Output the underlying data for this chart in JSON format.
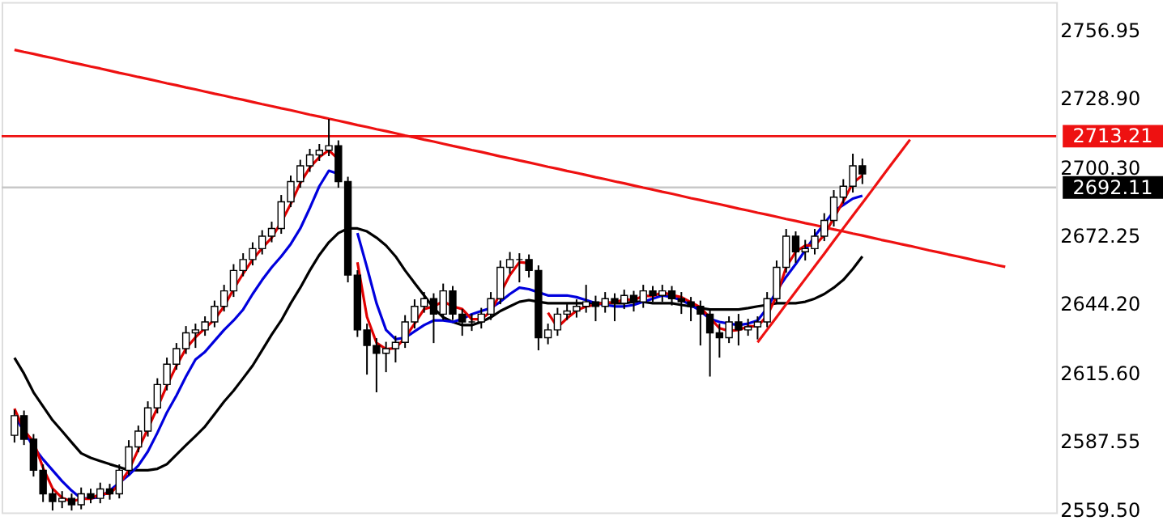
{
  "chart_data": {
    "type": "candlestick",
    "categories": [
      null,
      null,
      null,
      null,
      null,
      null,
      null,
      null,
      null,
      null,
      null,
      null,
      null,
      null,
      null,
      null,
      null,
      null,
      null,
      null,
      null,
      null,
      null,
      null,
      null,
      null,
      null,
      null,
      null,
      null,
      null,
      null,
      null,
      null,
      null,
      null,
      null,
      null,
      null,
      null,
      null,
      null,
      null,
      null,
      null,
      null,
      null,
      null,
      null,
      null,
      null,
      null,
      null,
      null,
      null,
      null,
      null,
      null,
      null,
      null,
      null,
      null,
      null,
      null,
      null,
      null,
      null,
      null,
      null,
      null,
      null,
      null,
      null,
      null,
      null,
      null,
      null,
      null,
      null,
      null,
      null,
      null,
      null,
      null,
      null,
      null,
      null,
      null,
      null,
      null,
      null,
      null,
      null,
      null,
      null,
      null,
      null,
      null,
      null,
      null,
      null,
      null,
      null,
      null,
      null,
      null,
      null,
      null,
      null
    ],
    "ohlc": [
      [
        2590.0,
        2600.5,
        2587.0,
        2598.1
      ],
      [
        2598.1,
        2600.2,
        2586.0,
        2588.4
      ],
      [
        2588.4,
        2590.5,
        2573.0,
        2575.6
      ],
      [
        2575.6,
        2578.0,
        2562.5,
        2565.9
      ],
      [
        2565.9,
        2568.0,
        2559.0,
        2562.7
      ],
      [
        2562.7,
        2567.0,
        2560.0,
        2564.0
      ],
      [
        2564.0,
        2566.0,
        2559.0,
        2561.4
      ],
      [
        2561.4,
        2568.5,
        2559.5,
        2565.9
      ],
      [
        2565.9,
        2568.0,
        2562.0,
        2564.0
      ],
      [
        2564.0,
        2570.5,
        2562.0,
        2567.9
      ],
      [
        2567.9,
        2570.0,
        2563.5,
        2565.9
      ],
      [
        2565.9,
        2578.0,
        2564.0,
        2575.6
      ],
      [
        2575.6,
        2588.0,
        2573.5,
        2585.2
      ],
      [
        2585.2,
        2594.0,
        2583.0,
        2591.7
      ],
      [
        2591.7,
        2604.0,
        2589.5,
        2601.3
      ],
      [
        2601.3,
        2613.5,
        2599.0,
        2610.9
      ],
      [
        2610.9,
        2622.0,
        2608.5,
        2619.3
      ],
      [
        2619.3,
        2628.0,
        2617.0,
        2625.7
      ],
      [
        2625.7,
        2635.0,
        2623.5,
        2632.2
      ],
      [
        2632.2,
        2636.0,
        2626.0,
        2633.4
      ],
      [
        2633.4,
        2639.0,
        2631.0,
        2636.7
      ],
      [
        2636.7,
        2645.5,
        2634.5,
        2643.1
      ],
      [
        2643.1,
        2652.0,
        2641.0,
        2649.5
      ],
      [
        2649.5,
        2660.5,
        2647.0,
        2657.9
      ],
      [
        2657.9,
        2665.0,
        2655.5,
        2662.4
      ],
      [
        2662.4,
        2669.5,
        2660.0,
        2666.9
      ],
      [
        2666.9,
        2674.5,
        2664.5,
        2672.0
      ],
      [
        2672.0,
        2678.0,
        2669.5,
        2675.2
      ],
      [
        2675.2,
        2689.0,
        2673.0,
        2686.2
      ],
      [
        2686.2,
        2697.0,
        2684.0,
        2694.5
      ],
      [
        2694.5,
        2703.5,
        2692.0,
        2701.0
      ],
      [
        2701.0,
        2708.0,
        2698.5,
        2705.5
      ],
      [
        2705.5,
        2710.0,
        2703.0,
        2707.4
      ],
      [
        2707.4,
        2720.3,
        2705.0,
        2709.3
      ],
      [
        2709.3,
        2711.5,
        2692.0,
        2694.5
      ],
      [
        2694.5,
        2696.5,
        2653.0,
        2656.0
      ],
      [
        2656.0,
        2658.0,
        2630.5,
        2633.4
      ],
      [
        2633.4,
        2636.0,
        2615.0,
        2627.0
      ],
      [
        2627.0,
        2630.0,
        2607.7,
        2623.8
      ],
      [
        2623.8,
        2628.5,
        2616.0,
        2625.7
      ],
      [
        2625.7,
        2631.0,
        2620.0,
        2628.3
      ],
      [
        2628.3,
        2639.5,
        2626.0,
        2636.7
      ],
      [
        2636.7,
        2646.0,
        2634.0,
        2643.1
      ],
      [
        2643.1,
        2649.0,
        2640.5,
        2646.3
      ],
      [
        2646.3,
        2648.5,
        2628.0,
        2639.9
      ],
      [
        2639.9,
        2652.5,
        2637.5,
        2649.5
      ],
      [
        2649.5,
        2651.5,
        2637.5,
        2639.9
      ],
      [
        2639.9,
        2642.0,
        2631.0,
        2636.7
      ],
      [
        2636.7,
        2640.0,
        2633.0,
        2636.7
      ],
      [
        2636.7,
        2642.5,
        2634.0,
        2639.9
      ],
      [
        2639.9,
        2649.0,
        2637.5,
        2646.3
      ],
      [
        2646.3,
        2662.0,
        2644.0,
        2659.2
      ],
      [
        2659.2,
        2665.5,
        2656.5,
        2662.4
      ],
      [
        2662.4,
        2665.0,
        2653.0,
        2662.4
      ],
      [
        2662.4,
        2664.5,
        2655.0,
        2657.9
      ],
      [
        2657.9,
        2660.0,
        2625.0,
        2630.2
      ],
      [
        2630.2,
        2636.0,
        2627.5,
        2633.4
      ],
      [
        2633.4,
        2642.5,
        2631.0,
        2639.9
      ],
      [
        2639.9,
        2644.0,
        2637.5,
        2641.2
      ],
      [
        2641.2,
        2646.0,
        2638.5,
        2643.1
      ],
      [
        2643.1,
        2652.0,
        2640.5,
        2645.0
      ],
      [
        2645.0,
        2647.5,
        2637.0,
        2643.1
      ],
      [
        2643.1,
        2649.0,
        2640.5,
        2646.3
      ],
      [
        2646.3,
        2648.5,
        2637.0,
        2644.4
      ],
      [
        2644.4,
        2650.0,
        2642.0,
        2647.6
      ],
      [
        2647.6,
        2649.5,
        2641.0,
        2645.0
      ],
      [
        2645.0,
        2652.0,
        2642.5,
        2649.5
      ],
      [
        2649.5,
        2651.5,
        2645.0,
        2647.6
      ],
      [
        2647.6,
        2652.0,
        2645.0,
        2649.5
      ],
      [
        2649.5,
        2651.5,
        2643.5,
        2646.3
      ],
      [
        2646.3,
        2649.0,
        2640.0,
        2645.0
      ],
      [
        2645.0,
        2647.0,
        2637.0,
        2643.1
      ],
      [
        2643.1,
        2645.5,
        2627.0,
        2639.9
      ],
      [
        2639.9,
        2642.0,
        2614.2,
        2632.2
      ],
      [
        2632.2,
        2636.0,
        2622.0,
        2630.2
      ],
      [
        2630.2,
        2639.0,
        2628.0,
        2636.7
      ],
      [
        2636.7,
        2640.0,
        2627.0,
        2633.4
      ],
      [
        2633.4,
        2638.0,
        2631.0,
        2634.7
      ],
      [
        2634.7,
        2639.0,
        2629.5,
        2636.7
      ],
      [
        2636.7,
        2649.0,
        2634.5,
        2646.3
      ],
      [
        2646.3,
        2662.0,
        2644.0,
        2659.2
      ],
      [
        2659.2,
        2675.0,
        2657.0,
        2672.0
      ],
      [
        2672.0,
        2674.0,
        2661.0,
        2665.6
      ],
      [
        2665.6,
        2670.5,
        2662.0,
        2666.9
      ],
      [
        2666.9,
        2675.0,
        2664.5,
        2672.0
      ],
      [
        2672.0,
        2681.5,
        2670.0,
        2678.5
      ],
      [
        2678.5,
        2691.0,
        2676.0,
        2688.1
      ],
      [
        2688.1,
        2695.5,
        2685.5,
        2692.6
      ],
      [
        2692.6,
        2706.0,
        2690.0,
        2701.0
      ],
      [
        2701.0,
        2704.0,
        2693.5,
        2697.7
      ],
      null,
      null,
      null,
      null,
      null,
      null,
      null,
      null,
      null,
      null,
      null,
      null,
      null,
      null,
      null,
      null,
      null,
      null,
      null
    ],
    "series": [
      {
        "type": "line",
        "color": "#000000",
        "values": [
          2621.9,
          2615.4,
          2607.7,
          2601.9,
          2596.2,
          2591.7,
          2587.1,
          2582.6,
          2580.7,
          2579.4,
          2578.1,
          2576.9,
          2575.6,
          2575.6,
          2575.6,
          2576.2,
          2578.1,
          2582.0,
          2585.9,
          2589.7,
          2593.6,
          2598.7,
          2603.9,
          2608.4,
          2613.5,
          2618.7,
          2625.1,
          2631.5,
          2637.3,
          2644.4,
          2650.8,
          2657.9,
          2664.3,
          2669.5,
          2673.3,
          2675.2,
          2675.2,
          2674.0,
          2671.4,
          2668.2,
          2663.7,
          2657.9,
          2652.7,
          2647.6,
          2642.4,
          2638.6,
          2636.7,
          2635.4,
          2635.4,
          2636.7,
          2638.6,
          2641.2,
          2643.1,
          2645.0,
          2645.7,
          2645.0,
          2644.4,
          2644.4,
          2644.4,
          2644.4,
          2644.4,
          2644.4,
          2644.4,
          2644.4,
          2644.4,
          2645.0,
          2645.0,
          2644.4,
          2644.4,
          2644.4,
          2643.7,
          2643.1,
          2642.4,
          2641.8,
          2641.8,
          2641.8,
          2641.8,
          2642.4,
          2643.1,
          2643.7,
          2644.4,
          2644.4,
          2644.4,
          2645.0,
          2646.3,
          2648.2,
          2650.8,
          2654.0,
          2658.5,
          2663.7,
          null,
          null,
          null,
          null,
          null,
          null,
          null,
          null,
          null,
          null,
          null,
          null,
          null,
          null,
          null,
          null,
          null,
          null,
          null
        ]
      },
      {
        "type": "line",
        "color": "#0000dd",
        "values": [
          2598.1,
          2591.7,
          2585.2,
          2580.1,
          2575.6,
          2571.1,
          2567.2,
          2564.0,
          2564.0,
          2564.6,
          2567.2,
          2570.4,
          2573.6,
          2577.5,
          2583.3,
          2591.0,
          2599.4,
          2606.4,
          2614.2,
          2621.2,
          2624.4,
          2628.9,
          2633.4,
          2637.3,
          2641.8,
          2648.2,
          2654.0,
          2659.2,
          2663.7,
          2668.8,
          2675.2,
          2683.6,
          2692.6,
          2699.0,
          2697.7,
          null,
          2673.3,
          2659.2,
          2644.4,
          2633.4,
          2629.6,
          2630.2,
          2632.8,
          2635.4,
          2637.3,
          2637.3,
          2636.7,
          2637.9,
          2639.9,
          2641.2,
          2642.4,
          2645.0,
          2648.2,
          2650.8,
          2650.2,
          2648.9,
          2647.6,
          2647.6,
          2647.6,
          2646.9,
          2645.7,
          2644.4,
          2643.7,
          2643.1,
          2643.1,
          2643.7,
          2645.0,
          2646.3,
          2647.6,
          2646.9,
          2645.7,
          2643.7,
          2641.2,
          2637.9,
          2636.7,
          2636.0,
          2635.4,
          2636.0,
          2637.3,
          2642.4,
          2649.5,
          2655.3,
          2660.5,
          2666.2,
          2672.0,
          2677.2,
          2682.3,
          2684.9,
          2687.5,
          2688.7,
          null,
          null,
          null,
          null,
          null,
          null,
          null,
          null,
          null,
          null,
          null,
          null,
          null,
          null,
          null,
          null,
          null,
          null,
          null
        ]
      },
      {
        "type": "line",
        "color": "#e00000",
        "values": [
          2601.0,
          2592.0,
          2587.4,
          2576.6,
          2568.1,
          2564.2,
          2562.7,
          2563.8,
          2563.8,
          2565.9,
          2565.9,
          2569.8,
          2575.6,
          2584.2,
          2592.7,
          2601.3,
          2610.5,
          2618.6,
          2625.7,
          2630.4,
          2634.1,
          2637.7,
          2643.1,
          2650.2,
          2656.6,
          2662.4,
          2667.1,
          2671.4,
          2677.8,
          2685.3,
          2693.9,
          2700.3,
          2704.6,
          2707.4,
          2703.7,
          null,
          2661.3,
          2638.8,
          2628.1,
          2625.5,
          2625.9,
          2630.2,
          2636.0,
          2642.0,
          2643.1,
          2645.2,
          2643.1,
          2642.0,
          2637.8,
          2637.8,
          2641.0,
          2648.5,
          2656.0,
          2661.3,
          2660.9,
          null,
          2640.5,
          2634.5,
          2638.2,
          2641.4,
          2643.1,
          2643.7,
          2644.8,
          2644.6,
          2646.1,
          2645.7,
          2647.4,
          2647.4,
          2648.9,
          2647.8,
          2646.9,
          2644.8,
          2642.7,
          2638.4,
          2634.1,
          2633.0,
          2633.4,
          2634.9,
          2634.9,
          2639.2,
          2647.4,
          2659.2,
          2665.6,
          2668.2,
          2668.2,
          2672.5,
          2679.5,
          2686.4,
          2693.9,
          2697.1,
          null,
          null,
          null,
          null,
          null,
          null,
          null,
          null,
          null,
          null,
          null,
          null,
          null,
          null,
          null,
          null,
          null,
          null,
          null
        ]
      },
      {
        "type": "line",
        "color": "#ee1111",
        "values": [
          2748.8,
          2747.9,
          2747.1,
          2746.2,
          2745.4,
          2744.5,
          2743.6,
          2742.8,
          2741.9,
          2741.1,
          2740.2,
          2739.3,
          2738.5,
          2737.6,
          2736.8,
          2735.9,
          2735.0,
          2734.2,
          2733.3,
          2732.5,
          2731.6,
          2730.7,
          2729.9,
          2729.0,
          2728.2,
          2727.3,
          2726.4,
          2725.6,
          2724.7,
          2723.9,
          2723.0,
          2722.1,
          2721.3,
          2720.4,
          2719.6,
          2718.7,
          2717.8,
          2717.0,
          2716.1,
          2715.3,
          2714.4,
          2713.5,
          2712.7,
          2711.8,
          2711.0,
          2710.1,
          2709.2,
          2708.4,
          2707.5,
          2706.7,
          2705.8,
          2704.9,
          2704.1,
          2703.2,
          2702.4,
          2701.5,
          2700.6,
          2699.8,
          2698.9,
          2698.1,
          2697.2,
          2696.3,
          2695.5,
          2694.6,
          2693.8,
          2692.9,
          2692.0,
          2691.2,
          2690.3,
          2689.5,
          2688.6,
          2687.7,
          2686.9,
          2686.0,
          2685.2,
          2684.3,
          2683.4,
          2682.6,
          2681.7,
          2680.9,
          2680.0,
          2679.1,
          2678.3,
          2677.4,
          2676.6,
          2675.7,
          2674.8,
          2674.0,
          2673.1,
          2672.3,
          2671.4,
          2670.5,
          2669.7,
          2668.8,
          2668.0,
          2667.1,
          2666.2,
          2665.4,
          2664.5,
          2663.7,
          2662.8,
          2661.9,
          2661.1,
          2660.2,
          2659.4,
          null,
          null,
          null,
          null
        ]
      },
      {
        "type": "line",
        "color": "#ee1111",
        "values": [
          null,
          null,
          null,
          null,
          null,
          null,
          null,
          null,
          null,
          null,
          null,
          null,
          null,
          null,
          null,
          null,
          null,
          null,
          null,
          null,
          null,
          null,
          null,
          null,
          null,
          null,
          null,
          null,
          null,
          null,
          null,
          null,
          null,
          null,
          null,
          null,
          null,
          null,
          null,
          null,
          null,
          null,
          null,
          null,
          null,
          null,
          null,
          null,
          null,
          null,
          null,
          null,
          null,
          null,
          null,
          null,
          null,
          null,
          null,
          null,
          null,
          null,
          null,
          null,
          null,
          null,
          null,
          null,
          null,
          null,
          null,
          null,
          null,
          null,
          null,
          null,
          null,
          null,
          2628.3,
          2633.5,
          2638.7,
          2644.0,
          2649.2,
          2654.4,
          2659.6,
          2664.8,
          2670.1,
          2675.3,
          2680.5,
          2685.7,
          2690.9,
          2696.2,
          2701.4,
          2706.6,
          2711.8,
          null,
          null,
          null,
          null,
          null,
          null,
          null,
          null,
          null,
          null,
          null,
          null,
          null,
          null
        ]
      }
    ],
    "ref_lines": [
      {
        "axis": "y",
        "value": 2713.21,
        "label": "2713.21",
        "color": "#ee1111"
      },
      {
        "axis": "y",
        "value": 2692.11,
        "label": "2692.11",
        "color": "#c8c8c8"
      }
    ],
    "ylim": [
      2558.2,
      2768.5
    ],
    "yticks": [
      {
        "value": 2559.5,
        "label": "2559.50"
      },
      2587.55,
      {
        "value": 2615.6,
        "label": "2615.60"
      },
      {
        "value": 2644.2,
        "label": "2644.20"
      },
      2672.25,
      {
        "value": 2700.3,
        "label": "2700.30"
      },
      {
        "value": 2728.9,
        "label": "2728.90"
      },
      2756.95
    ],
    "tick_labels": "y",
    "grid": false
  }
}
